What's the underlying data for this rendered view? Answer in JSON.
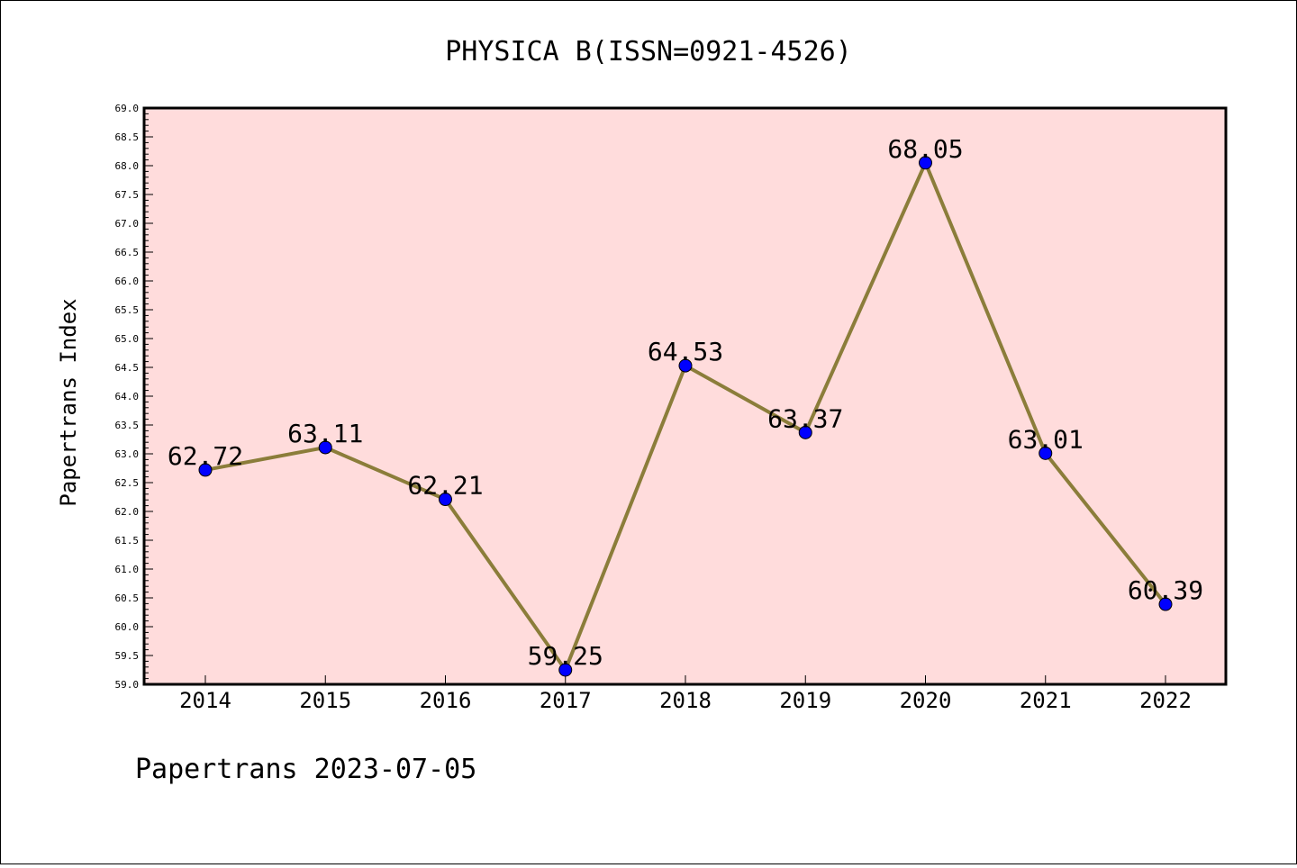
{
  "chart_data": {
    "type": "line",
    "title": "PHYSICA B(ISSN=0921-4526)",
    "xlabel": "",
    "ylabel": "Papertrans Index",
    "categories": [
      "2014",
      "2015",
      "2016",
      "2017",
      "2018",
      "2019",
      "2020",
      "2021",
      "2022"
    ],
    "values": [
      62.72,
      63.11,
      62.21,
      59.25,
      64.53,
      63.37,
      68.05,
      63.01,
      60.39
    ],
    "data_labels": [
      "62.72",
      "63.11",
      "62.21",
      "59.25",
      "64.53",
      "63.37",
      "68.05",
      "63.01",
      "60.39"
    ],
    "ylim": [
      59.0,
      69.0
    ],
    "yticks": [
      "59.0",
      "59.5",
      "60.0",
      "60.5",
      "61.0",
      "61.5",
      "62.0",
      "62.5",
      "63.0",
      "63.5",
      "64.0",
      "64.5",
      "65.0",
      "65.5",
      "66.0",
      "66.5",
      "67.0",
      "67.5",
      "68.0",
      "68.5",
      "69.0"
    ],
    "grid": false,
    "legend": "none",
    "colors": {
      "plot_background": "#ffdcdc",
      "line": "#8b7d3a",
      "marker": "#0000ff"
    }
  },
  "footer": "Papertrans 2023-07-05"
}
